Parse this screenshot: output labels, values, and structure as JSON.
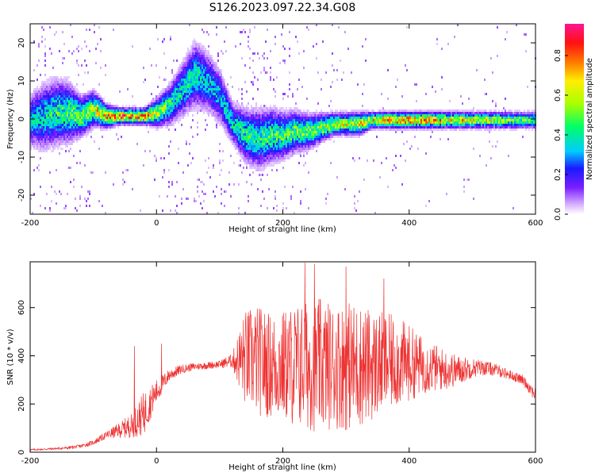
{
  "title": "S126.2023.097.22.34.G08",
  "colors": {
    "snr_line": "#ee3333",
    "colormap": [
      "#ffffff",
      "#d9b3ff",
      "#7a1fff",
      "#1a1aff",
      "#00ccff",
      "#00ff66",
      "#aaff00",
      "#ffee00",
      "#ff7700",
      "#ff1111",
      "#ff1493"
    ]
  },
  "chart_data": [
    {
      "type": "heatmap",
      "title": "S126.2023.097.22.34.G08",
      "xlabel": "Height of straight line (km)",
      "ylabel": "Frequency (Hz)",
      "xlim": [
        -200,
        600
      ],
      "ylim": [
        -25,
        25
      ],
      "xticks": [
        "-200",
        "0",
        "200",
        "400",
        "600"
      ],
      "yticks": [
        "-20",
        "-10",
        "0",
        "10",
        "20"
      ],
      "x": [
        -200,
        -180,
        -160,
        -140,
        -120,
        -100,
        -80,
        -60,
        -40,
        -20,
        0,
        20,
        40,
        60,
        80,
        100,
        120,
        140,
        160,
        180,
        200,
        220,
        240,
        260,
        280,
        300,
        320,
        340,
        360,
        380,
        400,
        420,
        440,
        460,
        480,
        500,
        520,
        540,
        560,
        580,
        600
      ],
      "ridge_frequency": [
        0,
        1,
        2,
        2,
        1,
        3,
        1,
        1,
        1,
        1,
        2,
        4,
        8,
        12,
        10,
        6,
        -1,
        -4,
        -5,
        -4,
        -4,
        -3,
        -3,
        -2,
        -1,
        -1,
        -1,
        0,
        0,
        0,
        0,
        0,
        0,
        0,
        0,
        0,
        0,
        0,
        0,
        0,
        0
      ],
      "frequency_spread": [
        8,
        10,
        10,
        9,
        6,
        5,
        3,
        2,
        2,
        2,
        4,
        6,
        8,
        10,
        9,
        8,
        6,
        8,
        9,
        8,
        7,
        6,
        5,
        4,
        3,
        3,
        3,
        2,
        2,
        2,
        2,
        2,
        2,
        2,
        2,
        2,
        2,
        2,
        2,
        2,
        2
      ],
      "peak_amplitude": [
        0.4,
        0.45,
        0.5,
        0.55,
        0.6,
        0.7,
        0.9,
        0.95,
        0.9,
        0.85,
        0.7,
        0.5,
        0.45,
        0.45,
        0.4,
        0.4,
        0.45,
        0.5,
        0.5,
        0.55,
        0.55,
        0.6,
        0.6,
        0.65,
        0.7,
        0.7,
        0.75,
        0.8,
        0.85,
        0.9,
        0.9,
        0.9,
        0.9,
        0.8,
        0.8,
        0.75,
        0.7,
        0.65,
        0.6,
        0.55,
        0.55
      ],
      "colorbar": {
        "label": "Normalized spectral amplitude",
        "range": [
          0,
          0.96
        ],
        "ticks": [
          "0.0",
          "0.2",
          "0.4",
          "0.6",
          "0.8"
        ]
      }
    },
    {
      "type": "line",
      "xlabel": "Height of straight line (km)",
      "ylabel": "SNR (10 * v/v)",
      "xlim": [
        -200,
        600
      ],
      "ylim": [
        0,
        790
      ],
      "xticks": [
        "-200",
        "0",
        "200",
        "400",
        "600"
      ],
      "yticks": [
        "0",
        "200",
        "400",
        "600"
      ],
      "x": [
        -200,
        -180,
        -160,
        -140,
        -120,
        -100,
        -80,
        -60,
        -40,
        -20,
        0,
        20,
        40,
        60,
        80,
        100,
        120,
        140,
        160,
        180,
        200,
        220,
        240,
        260,
        280,
        300,
        320,
        340,
        360,
        380,
        400,
        420,
        440,
        460,
        480,
        500,
        520,
        540,
        560,
        580,
        600
      ],
      "envelope_center": [
        10,
        12,
        15,
        18,
        25,
        40,
        70,
        90,
        110,
        160,
        250,
        320,
        345,
        355,
        360,
        365,
        380,
        390,
        380,
        360,
        360,
        360,
        360,
        360,
        360,
        360,
        360,
        360,
        370,
        375,
        370,
        360,
        350,
        340,
        340,
        350,
        350,
        340,
        320,
        300,
        240
      ],
      "envelope_amplitude": [
        4,
        4,
        5,
        6,
        8,
        10,
        15,
        30,
        50,
        90,
        50,
        25,
        18,
        15,
        15,
        15,
        30,
        200,
        230,
        220,
        230,
        260,
        270,
        280,
        260,
        270,
        260,
        230,
        210,
        190,
        160,
        120,
        100,
        80,
        60,
        40,
        30,
        25,
        20,
        20,
        30
      ],
      "spikes": [
        {
          "x": -35,
          "y": 440
        },
        {
          "x": 8,
          "y": 450
        },
        {
          "x": 235,
          "y": 785
        },
        {
          "x": 250,
          "y": 780
        },
        {
          "x": 300,
          "y": 770
        },
        {
          "x": 360,
          "y": 720
        }
      ]
    }
  ]
}
